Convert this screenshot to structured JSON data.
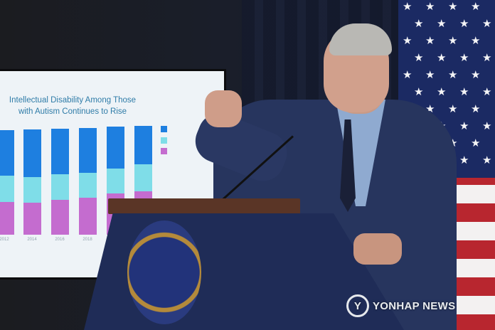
{
  "scene": "press-briefing",
  "screen_slide": {
    "title_line1": "Intellectual Disability Among Those",
    "title_line2": "with Autism Continues to Rise",
    "tick_labels": [
      "2012",
      "2014",
      "2016",
      "2018"
    ],
    "colors": {
      "top": "#1e7fe0",
      "middle": "#7fdde8",
      "bottom": "#c46ccf"
    }
  },
  "watermark": {
    "text": "YONHAP NEWS"
  },
  "colors": {
    "flag_red": "#b8262f",
    "flag_blue": "#1b2a63",
    "podium": "#1f2c57",
    "suit": "#27355e"
  }
}
